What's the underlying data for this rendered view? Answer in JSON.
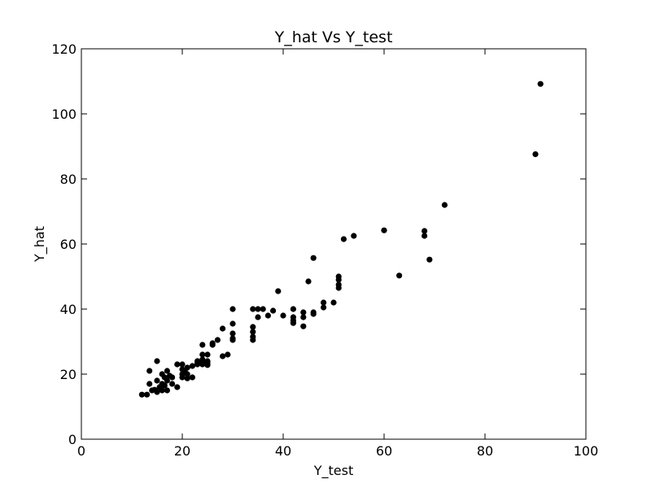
{
  "chart_data": {
    "type": "scatter",
    "title": "Y_hat Vs Y_test",
    "xlabel": "Y_test",
    "ylabel": "Y_hat",
    "xlim": [
      0,
      100
    ],
    "ylim": [
      0,
      120
    ],
    "xticks": [
      0,
      20,
      40,
      60,
      80,
      100
    ],
    "yticks": [
      0,
      20,
      40,
      60,
      80,
      100,
      120
    ],
    "grid": false,
    "marker_color": "#000000",
    "points": [
      [
        12,
        13.7
      ],
      [
        13,
        13.7
      ],
      [
        13.5,
        17
      ],
      [
        13.5,
        21
      ],
      [
        14,
        15
      ],
      [
        14.5,
        15.2
      ],
      [
        15,
        24
      ],
      [
        15,
        18
      ],
      [
        15,
        14.5
      ],
      [
        15.5,
        16
      ],
      [
        16,
        20
      ],
      [
        16,
        17
      ],
      [
        16,
        15
      ],
      [
        16.5,
        19
      ],
      [
        16.5,
        16.5
      ],
      [
        17,
        21
      ],
      [
        17,
        18
      ],
      [
        17,
        15
      ],
      [
        17.5,
        19.5
      ],
      [
        18,
        17
      ],
      [
        18,
        19
      ],
      [
        19,
        23
      ],
      [
        19,
        16
      ],
      [
        20,
        23
      ],
      [
        20,
        21.5
      ],
      [
        20,
        20
      ],
      [
        20,
        19
      ],
      [
        20.5,
        21
      ],
      [
        21,
        22
      ],
      [
        21,
        20
      ],
      [
        21,
        18.7
      ],
      [
        22,
        22.5
      ],
      [
        22,
        19
      ],
      [
        23,
        24
      ],
      [
        23,
        23.5
      ],
      [
        23,
        23
      ],
      [
        24,
        29
      ],
      [
        24,
        26
      ],
      [
        24,
        24.5
      ],
      [
        24,
        24
      ],
      [
        24,
        23
      ],
      [
        25,
        26
      ],
      [
        25,
        24
      ],
      [
        25,
        23.5
      ],
      [
        25,
        22.8
      ],
      [
        26,
        29.5
      ],
      [
        26,
        29
      ],
      [
        27,
        30.5
      ],
      [
        28,
        34
      ],
      [
        28,
        25.5
      ],
      [
        29,
        26
      ],
      [
        30,
        40
      ],
      [
        30,
        35.5
      ],
      [
        30,
        32.5
      ],
      [
        30,
        31
      ],
      [
        30,
        30.5
      ],
      [
        34,
        40
      ],
      [
        34,
        34.5
      ],
      [
        34,
        33
      ],
      [
        34,
        31.5
      ],
      [
        34,
        30.5
      ],
      [
        35,
        40
      ],
      [
        35,
        37.5
      ],
      [
        36,
        40
      ],
      [
        37,
        38
      ],
      [
        38,
        39.5
      ],
      [
        39,
        45.5
      ],
      [
        40,
        38
      ],
      [
        42,
        40
      ],
      [
        42,
        37.5
      ],
      [
        42,
        36.5
      ],
      [
        42,
        35.7
      ],
      [
        44,
        39
      ],
      [
        44,
        37.5
      ],
      [
        44,
        34.7
      ],
      [
        45,
        48.5
      ],
      [
        46,
        55.7
      ],
      [
        46,
        39
      ],
      [
        46,
        38.5
      ],
      [
        48,
        42
      ],
      [
        48,
        40.5
      ],
      [
        50,
        42
      ],
      [
        51,
        50
      ],
      [
        51,
        49
      ],
      [
        51,
        47.5
      ],
      [
        51,
        46.5
      ],
      [
        52,
        61.5
      ],
      [
        54,
        62.5
      ],
      [
        60,
        64.2
      ],
      [
        63,
        50.3
      ],
      [
        68,
        64
      ],
      [
        68,
        62.5
      ],
      [
        69,
        55.2
      ],
      [
        72,
        72
      ],
      [
        90,
        87.6
      ],
      [
        91,
        109.2
      ]
    ]
  }
}
